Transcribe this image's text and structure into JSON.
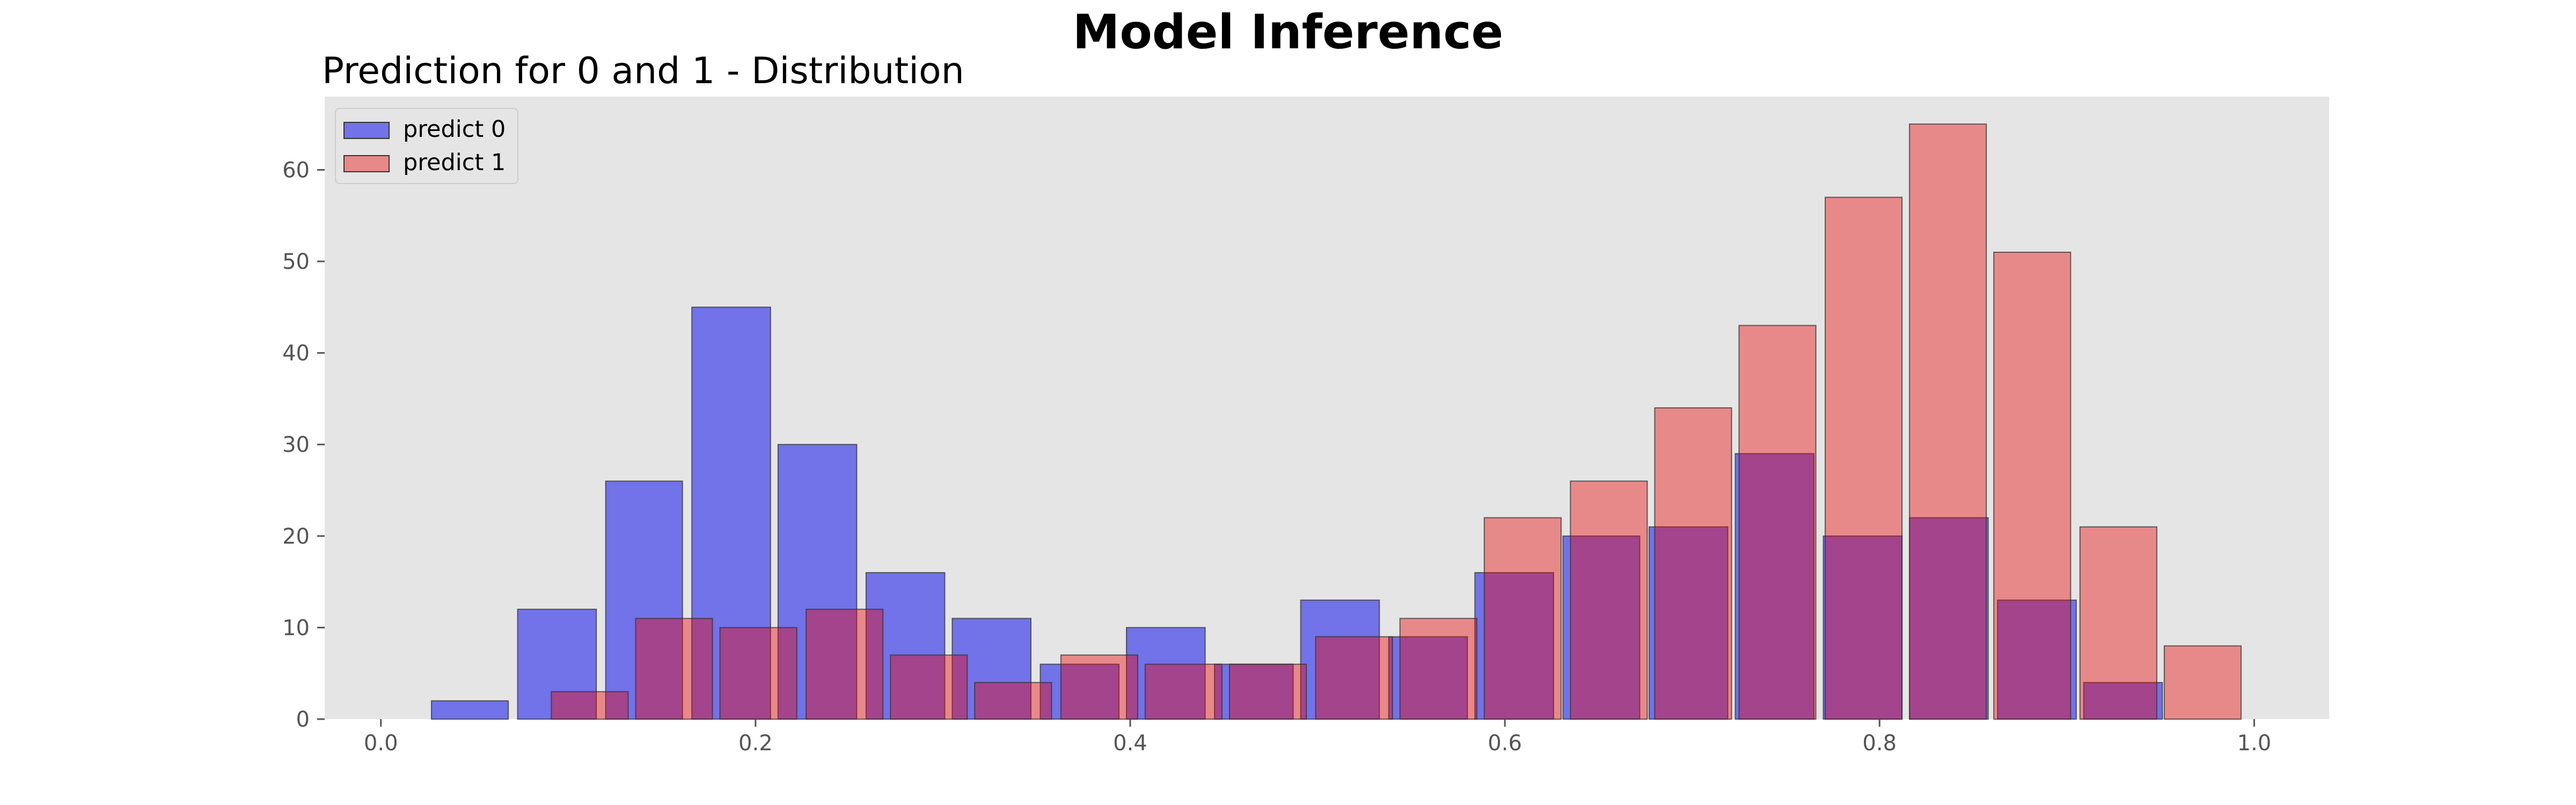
{
  "figure": {
    "suptitle": "Model Inference"
  },
  "chart_data": {
    "type": "bar",
    "title": "Prediction for 0 and 1 - Distribution",
    "xlabel": "",
    "ylabel": "",
    "xlim": [
      -0.03,
      1.04
    ],
    "ylim": [
      0,
      68
    ],
    "xticks": [
      0.0,
      0.2,
      0.4,
      0.6,
      0.8,
      1.0
    ],
    "xtick_labels": [
      "0.0",
      "0.2",
      "0.4",
      "0.6",
      "0.8",
      "1.0"
    ],
    "yticks": [
      0,
      10,
      20,
      30,
      40,
      50,
      60
    ],
    "ytick_labels": [
      "0",
      "10",
      "20",
      "30",
      "40",
      "50",
      "60"
    ],
    "grid": false,
    "background": "#e5e5e5",
    "legend_position": "top-left",
    "bar_edge_color": "#333333",
    "series": [
      {
        "name": "predict 0",
        "color": "#0000ee",
        "alpha": 0.5,
        "bins": [
          {
            "x0": 0.027,
            "x1": 0.068,
            "value": 2
          },
          {
            "x0": 0.073,
            "x1": 0.115,
            "value": 12
          },
          {
            "x0": 0.12,
            "x1": 0.161,
            "value": 26
          },
          {
            "x0": 0.166,
            "x1": 0.208,
            "value": 45
          },
          {
            "x0": 0.212,
            "x1": 0.254,
            "value": 30
          },
          {
            "x0": 0.259,
            "x1": 0.301,
            "value": 16
          },
          {
            "x0": 0.305,
            "x1": 0.347,
            "value": 11
          },
          {
            "x0": 0.352,
            "x1": 0.394,
            "value": 6
          },
          {
            "x0": 0.398,
            "x1": 0.44,
            "value": 10
          },
          {
            "x0": 0.445,
            "x1": 0.487,
            "value": 6
          },
          {
            "x0": 0.491,
            "x1": 0.533,
            "value": 13
          },
          {
            "x0": 0.538,
            "x1": 0.58,
            "value": 9
          },
          {
            "x0": 0.584,
            "x1": 0.626,
            "value": 16
          },
          {
            "x0": 0.631,
            "x1": 0.672,
            "value": 20
          },
          {
            "x0": 0.677,
            "x1": 0.719,
            "value": 21
          },
          {
            "x0": 0.723,
            "x1": 0.765,
            "value": 29
          },
          {
            "x0": 0.77,
            "x1": 0.812,
            "value": 20
          },
          {
            "x0": 0.816,
            "x1": 0.858,
            "value": 22
          },
          {
            "x0": 0.863,
            "x1": 0.905,
            "value": 13
          },
          {
            "x0": 0.909,
            "x1": 0.951,
            "value": 4
          }
        ]
      },
      {
        "name": "predict 1",
        "color": "#ee0000",
        "alpha": 0.4,
        "bins": [
          {
            "x0": 0.091,
            "x1": 0.132,
            "value": 3
          },
          {
            "x0": 0.136,
            "x1": 0.177,
            "value": 11
          },
          {
            "x0": 0.181,
            "x1": 0.222,
            "value": 10
          },
          {
            "x0": 0.227,
            "x1": 0.268,
            "value": 12
          },
          {
            "x0": 0.272,
            "x1": 0.313,
            "value": 7
          },
          {
            "x0": 0.317,
            "x1": 0.358,
            "value": 4
          },
          {
            "x0": 0.363,
            "x1": 0.404,
            "value": 7
          },
          {
            "x0": 0.408,
            "x1": 0.449,
            "value": 6
          },
          {
            "x0": 0.453,
            "x1": 0.494,
            "value": 6
          },
          {
            "x0": 0.499,
            "x1": 0.54,
            "value": 9
          },
          {
            "x0": 0.544,
            "x1": 0.585,
            "value": 11
          },
          {
            "x0": 0.589,
            "x1": 0.63,
            "value": 22
          },
          {
            "x0": 0.635,
            "x1": 0.676,
            "value": 26
          },
          {
            "x0": 0.68,
            "x1": 0.721,
            "value": 34
          },
          {
            "x0": 0.725,
            "x1": 0.766,
            "value": 43
          },
          {
            "x0": 0.771,
            "x1": 0.812,
            "value": 57
          },
          {
            "x0": 0.816,
            "x1": 0.857,
            "value": 65
          },
          {
            "x0": 0.861,
            "x1": 0.902,
            "value": 51
          },
          {
            "x0": 0.907,
            "x1": 0.948,
            "value": 21
          },
          {
            "x0": 0.952,
            "x1": 0.993,
            "value": 8
          }
        ]
      }
    ]
  }
}
